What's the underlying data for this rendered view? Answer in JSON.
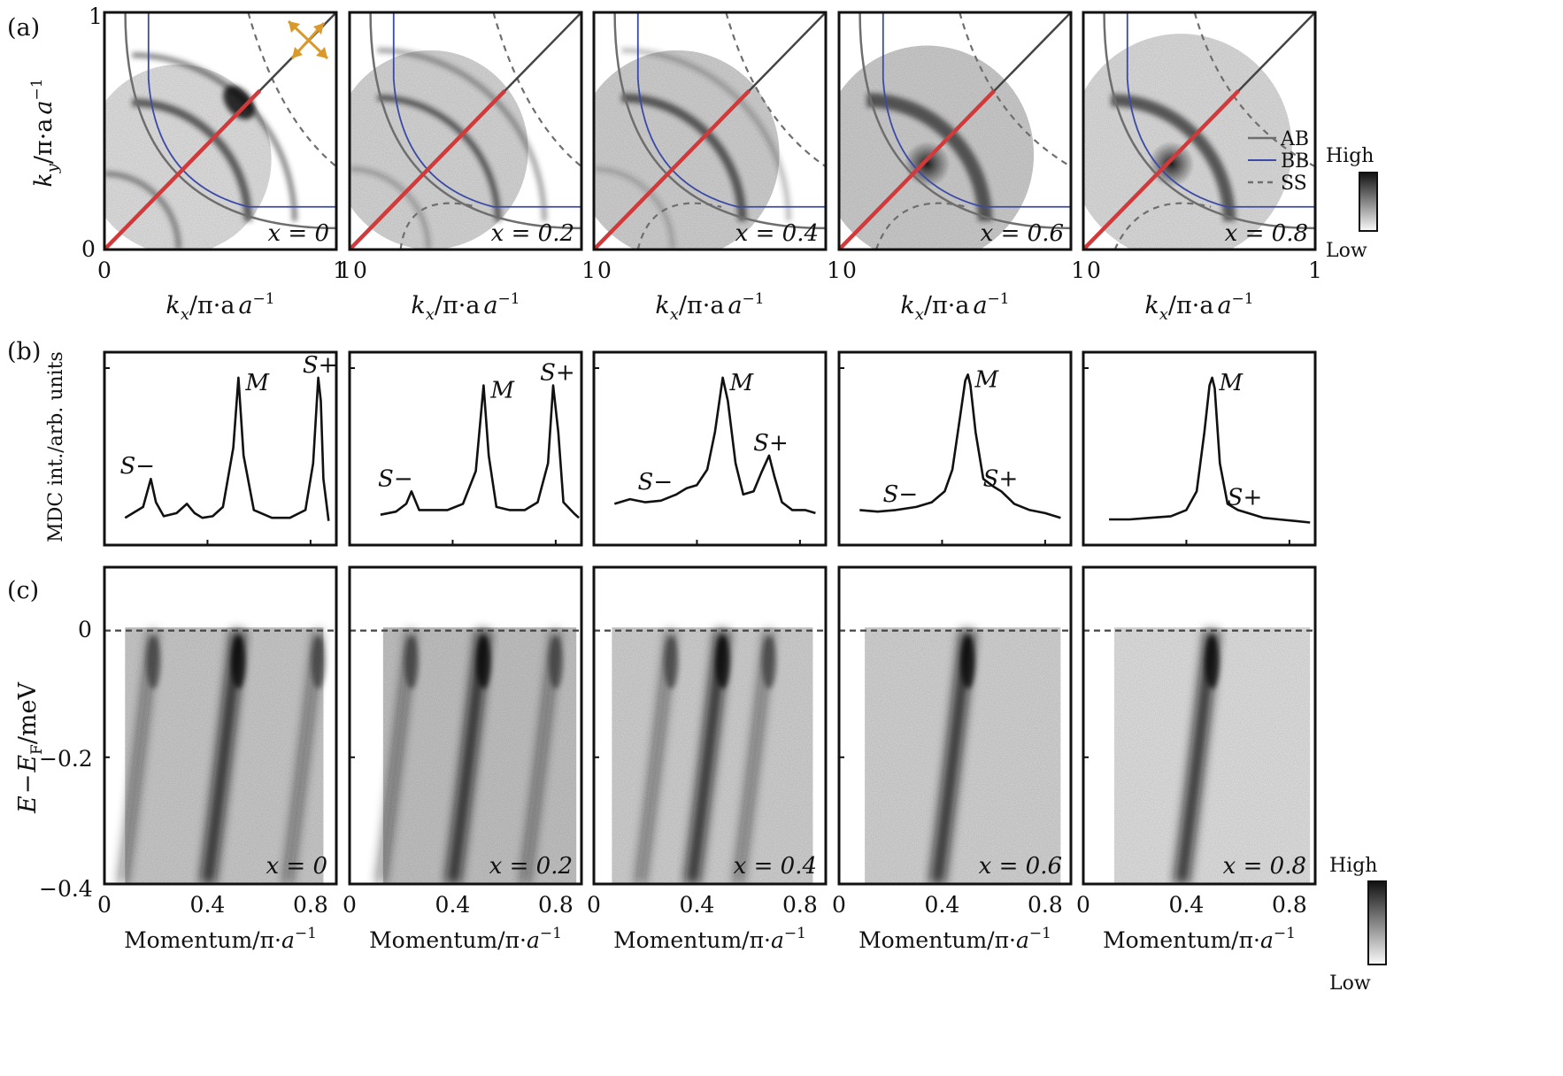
{
  "chart_data": [
    {
      "panel": "(a)",
      "type": "heatmap",
      "description_axis": {
        "ylabel": "k_y/π·a^-1",
        "xlabel": "k_x/π·a^-1",
        "xlim": [
          0,
          1
        ],
        "ylim": [
          0,
          1
        ],
        "xticks": [
          "0",
          "1"
        ],
        "yticks": [
          "0",
          "1"
        ]
      },
      "subplots": [
        {
          "label": "x = 0",
          "xtick_labels": [
            "0",
            "1"
          ]
        },
        {
          "label": "x = 0.2",
          "xtick_labels": [
            "1",
            "0",
            "1"
          ]
        },
        {
          "label": "x = 0.4",
          "xtick_labels": [
            "1",
            "0",
            "1"
          ]
        },
        {
          "label": "x = 0.6",
          "xtick_labels": [
            "1",
            "0",
            "1"
          ]
        },
        {
          "label": "x = 0.8",
          "xtick_labels": [
            "1",
            "0",
            "1"
          ]
        }
      ],
      "legend": [
        {
          "name": "AB",
          "color": "#6e6e6e",
          "style": "solid"
        },
        {
          "name": "BB",
          "color": "#3a4aa6",
          "style": "solid"
        },
        {
          "name": "SS",
          "color": "#6e6e6e",
          "style": "dashed"
        }
      ],
      "colorbar": {
        "high": "High",
        "low": "Low"
      },
      "cut_line_color": "#d13a3a",
      "polarization_arrow_color": "#d99a2b"
    },
    {
      "panel": "(b)",
      "type": "line",
      "ylabel": "MDC int./arb. units",
      "xlim": [
        0,
        0.9
      ],
      "series": [
        {
          "name": "x = 0",
          "x": [
            0.08,
            0.15,
            0.18,
            0.2,
            0.23,
            0.28,
            0.32,
            0.35,
            0.38,
            0.42,
            0.46,
            0.5,
            0.52,
            0.54,
            0.58,
            0.65,
            0.72,
            0.78,
            0.81,
            0.83,
            0.84,
            0.85,
            0.87
          ],
          "y": [
            0.05,
            0.12,
            0.3,
            0.15,
            0.06,
            0.08,
            0.14,
            0.08,
            0.05,
            0.06,
            0.12,
            0.5,
            0.95,
            0.45,
            0.1,
            0.05,
            0.05,
            0.1,
            0.4,
            0.95,
            0.8,
            0.3,
            0.03
          ],
          "peaks": [
            {
              "label": "S−",
              "x": 0.19
            },
            {
              "label": "M",
              "x": 0.52
            },
            {
              "label": "S+",
              "x": 0.83
            }
          ]
        },
        {
          "name": "x = 0.2",
          "x": [
            0.12,
            0.18,
            0.22,
            0.24,
            0.27,
            0.32,
            0.38,
            0.44,
            0.49,
            0.52,
            0.54,
            0.57,
            0.62,
            0.68,
            0.73,
            0.77,
            0.79,
            0.81,
            0.83,
            0.87,
            0.89
          ],
          "y": [
            0.07,
            0.09,
            0.14,
            0.22,
            0.1,
            0.1,
            0.1,
            0.14,
            0.35,
            0.9,
            0.45,
            0.12,
            0.1,
            0.1,
            0.15,
            0.4,
            0.9,
            0.6,
            0.15,
            0.08,
            0.05
          ],
          "peaks": [
            {
              "label": "S−",
              "x": 0.24
            },
            {
              "label": "M",
              "x": 0.52
            },
            {
              "label": "S+",
              "x": 0.8
            }
          ]
        },
        {
          "name": "x = 0.4",
          "x": [
            0.08,
            0.14,
            0.2,
            0.26,
            0.32,
            0.36,
            0.4,
            0.44,
            0.47,
            0.5,
            0.52,
            0.55,
            0.58,
            0.62,
            0.65,
            0.68,
            0.7,
            0.73,
            0.77,
            0.82,
            0.86
          ],
          "y": [
            0.14,
            0.17,
            0.15,
            0.16,
            0.2,
            0.24,
            0.26,
            0.36,
            0.6,
            0.95,
            0.8,
            0.4,
            0.2,
            0.22,
            0.34,
            0.45,
            0.32,
            0.15,
            0.1,
            0.1,
            0.08
          ],
          "peaks": [
            {
              "label": "S−",
              "x": 0.3
            },
            {
              "label": "M",
              "x": 0.5
            },
            {
              "label": "S+",
              "x": 0.68
            }
          ]
        },
        {
          "name": "x = 0.6",
          "x": [
            0.08,
            0.15,
            0.22,
            0.3,
            0.36,
            0.41,
            0.44,
            0.47,
            0.49,
            0.5,
            0.51,
            0.53,
            0.56,
            0.6,
            0.63,
            0.68,
            0.74,
            0.8,
            0.86
          ],
          "y": [
            0.1,
            0.09,
            0.1,
            0.12,
            0.15,
            0.22,
            0.36,
            0.7,
            0.93,
            0.97,
            0.9,
            0.6,
            0.3,
            0.25,
            0.22,
            0.14,
            0.1,
            0.08,
            0.05
          ],
          "peaks": [
            {
              "label": "S−",
              "x": 0.3
            },
            {
              "label": "M",
              "x": 0.5
            },
            {
              "label": "S+",
              "x": 0.62
            }
          ]
        },
        {
          "name": "x = 0.8",
          "x": [
            0.1,
            0.18,
            0.26,
            0.34,
            0.4,
            0.44,
            0.47,
            0.49,
            0.5,
            0.51,
            0.53,
            0.56,
            0.6,
            0.64,
            0.7,
            0.76,
            0.82,
            0.88
          ],
          "y": [
            0.04,
            0.04,
            0.05,
            0.06,
            0.1,
            0.22,
            0.6,
            0.9,
            0.95,
            0.88,
            0.4,
            0.14,
            0.1,
            0.08,
            0.05,
            0.04,
            0.03,
            0.02
          ],
          "peaks": [
            {
              "label": "M",
              "x": 0.5
            },
            {
              "label": "S+",
              "x": 0.62
            }
          ]
        }
      ]
    },
    {
      "panel": "(c)",
      "type": "heatmap",
      "ylabel": "E − E_F/meV",
      "xlabel": "Momentum/π·a^-1",
      "xlim": [
        0,
        0.9
      ],
      "ylim": [
        -0.4,
        0.1
      ],
      "xticks": [
        "0",
        "0.4",
        "0.8"
      ],
      "yticks": [
        "0",
        "−0.2",
        "−0.4"
      ],
      "fermi_level": 0,
      "subplots": [
        {
          "label": "x = 0",
          "bands_kF": [
            0.19,
            0.52,
            0.83
          ]
        },
        {
          "label": "x = 0.2",
          "bands_kF": [
            0.24,
            0.52,
            0.8
          ]
        },
        {
          "label": "x = 0.4",
          "bands_kF": [
            0.3,
            0.5,
            0.68
          ]
        },
        {
          "label": "x = 0.6",
          "bands_kF": [
            0.5
          ]
        },
        {
          "label": "x = 0.8",
          "bands_kF": [
            0.5
          ]
        }
      ],
      "colorbar": {
        "high": "High",
        "low": "Low"
      }
    }
  ],
  "labels": {
    "panel_a": "(a)",
    "panel_b": "(b)",
    "panel_c": "(c)",
    "ky_unit": "/π·a",
    "kx_unit": "/π·a",
    "momentum": "Momentum/π·",
    "a_sym": "a",
    "inv": "−1",
    "mdc_ylabel": "MDC int./arb. units",
    "energy_E": "E",
    "energy_minus": "−",
    "energy_EF": "E",
    "energy_F": "F",
    "energy_unit": "/meV",
    "k_sym": "k",
    "x_sub": "x",
    "y_sub": "y",
    "legend_ab": "AB",
    "legend_bb": "BB",
    "legend_ss": "SS",
    "cbar_high": "High",
    "cbar_low": "Low",
    "cbar2_high": "High",
    "cbar2_low": "Low",
    "ytick_a0": "0",
    "ytick_a1": "1",
    "ytick_c0": "0",
    "ytick_c1": "−0.2",
    "ytick_c2": "−0.4"
  },
  "colors": {
    "ab": "#6e6e6e",
    "bb": "#3a4aa6",
    "ss": "#6e6e6e",
    "cut": "#d13a3a",
    "arrow": "#d99a2b",
    "frame": "#111111"
  }
}
